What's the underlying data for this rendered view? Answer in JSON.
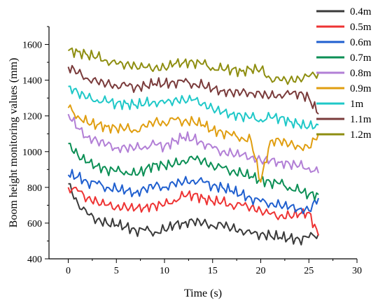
{
  "chart_data": {
    "type": "line",
    "title": "",
    "xlabel": "Time (s)",
    "ylabel": "Boom height monitoring values (mm)",
    "xlim": [
      -2,
      30
    ],
    "ylim": [
      400,
      1700
    ],
    "x_ticks": [
      0,
      5,
      10,
      15,
      20,
      25,
      30
    ],
    "y_ticks": [
      400,
      600,
      800,
      1000,
      1200,
      1400,
      1600
    ],
    "grid": false,
    "legend_position": "outside-top-right",
    "x": [
      0,
      1,
      2,
      3,
      4,
      5,
      6,
      7,
      8,
      9,
      10,
      11,
      12,
      13,
      14,
      15,
      16,
      17,
      18,
      19,
      20,
      21,
      22,
      23,
      24,
      25,
      26
    ],
    "series": [
      {
        "name": "0.4m",
        "color": "#3a3a3a",
        "values": [
          820,
          710,
          650,
          620,
          600,
          590,
          580,
          560,
          560,
          550,
          560,
          590,
          600,
          610,
          600,
          585,
          590,
          570,
          560,
          540,
          540,
          530,
          520,
          515,
          510,
          520,
          540
        ]
      },
      {
        "name": "0.5m",
        "color": "#ee3333",
        "values": [
          800,
          780,
          740,
          720,
          700,
          690,
          690,
          680,
          690,
          700,
          700,
          730,
          750,
          760,
          740,
          720,
          720,
          700,
          700,
          690,
          670,
          650,
          640,
          640,
          650,
          660,
          530
        ]
      },
      {
        "name": "0.6m",
        "color": "#1f5fcf",
        "values": [
          870,
          860,
          830,
          820,
          800,
          790,
          780,
          770,
          790,
          810,
          800,
          820,
          830,
          840,
          830,
          810,
          800,
          780,
          760,
          740,
          720,
          710,
          700,
          690,
          680,
          670,
          740
        ]
      },
      {
        "name": "0.7m",
        "color": "#0b8f55",
        "values": [
          1045,
          980,
          940,
          920,
          900,
          890,
          890,
          870,
          900,
          930,
          920,
          930,
          950,
          960,
          950,
          920,
          910,
          890,
          880,
          860,
          840,
          830,
          820,
          800,
          780,
          760,
          760
        ]
      },
      {
        "name": "0.8m",
        "color": "#b27fd6",
        "values": [
          1210,
          1130,
          1080,
          1060,
          1040,
          1020,
          1020,
          1020,
          1030,
          1040,
          1030,
          1060,
          1080,
          1070,
          1050,
          1020,
          1000,
          990,
          980,
          970,
          950,
          950,
          940,
          930,
          920,
          910,
          880
        ]
      },
      {
        "name": "0.9m",
        "color": "#e09e10",
        "values": [
          1245,
          1200,
          1160,
          1150,
          1140,
          1130,
          1130,
          1120,
          1140,
          1170,
          1160,
          1180,
          1170,
          1170,
          1150,
          1120,
          1110,
          1090,
          1080,
          1060,
          830,
          1060,
          1060,
          1040,
          1030,
          1020,
          1100
        ]
      },
      {
        "name": "1m",
        "color": "#1fc8c8",
        "values": [
          1365,
          1330,
          1300,
          1290,
          1280,
          1270,
          1270,
          1260,
          1270,
          1280,
          1270,
          1290,
          1290,
          1290,
          1270,
          1240,
          1220,
          1210,
          1200,
          1190,
          1180,
          1190,
          1190,
          1170,
          1150,
          1140,
          1150
        ]
      },
      {
        "name": "1.1m",
        "color": "#7a3b3b",
        "values": [
          1475,
          1440,
          1410,
          1390,
          1380,
          1370,
          1370,
          1360,
          1370,
          1380,
          1380,
          1390,
          1390,
          1380,
          1370,
          1350,
          1340,
          1330,
          1330,
          1330,
          1320,
          1310,
          1320,
          1320,
          1330,
          1300,
          1210
        ]
      },
      {
        "name": "1.2m",
        "color": "#8e8e10",
        "values": [
          1565,
          1560,
          1540,
          1530,
          1510,
          1490,
          1490,
          1480,
          1470,
          1470,
          1470,
          1490,
          1500,
          1500,
          1490,
          1470,
          1460,
          1460,
          1450,
          1460,
          1460,
          1410,
          1400,
          1400,
          1410,
          1420,
          1440
        ]
      }
    ]
  }
}
